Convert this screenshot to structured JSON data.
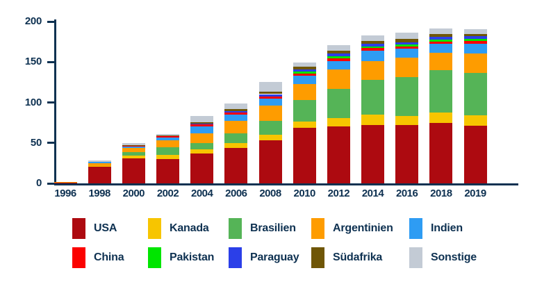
{
  "chart_data": {
    "type": "bar",
    "stacked": true,
    "title": "",
    "xlabel": "",
    "ylabel": "",
    "ylim": [
      0,
      200
    ],
    "yticks": [
      0,
      50,
      100,
      150,
      200
    ],
    "grid": false,
    "legend_position": "bottom",
    "axis_color": "#0e3151",
    "background_color": "#ffffff",
    "categories": [
      "1996",
      "1998",
      "2000",
      "2002",
      "2004",
      "2006",
      "2008",
      "2010",
      "2012",
      "2014",
      "2016",
      "2018",
      "2019"
    ],
    "series": [
      {
        "name": "USA",
        "color": "#ad0a10",
        "values": [
          0.9,
          20.5,
          30.5,
          30.0,
          37.0,
          44.0,
          53.5,
          69.0,
          70.5,
          72.5,
          72.0,
          75.0,
          71.5
        ]
      },
      {
        "name": "Kanada",
        "color": "#f7c500",
        "values": [
          0.5,
          1.0,
          3.5,
          5.0,
          5.0,
          5.5,
          6.5,
          7.0,
          10.5,
          12.5,
          11.0,
          12.5,
          12.5
        ]
      },
      {
        "name": "Brasilien",
        "color": "#55b457",
        "values": [
          0,
          0,
          4.5,
          9.5,
          8.0,
          12.5,
          17.5,
          27.0,
          35.5,
          43.0,
          48.5,
          52.0,
          52.8
        ]
      },
      {
        "name": "Argentinien",
        "color": "#fe9c00",
        "values": [
          0.3,
          3.0,
          5.0,
          9.0,
          12.0,
          15.5,
          18.5,
          20.0,
          24.0,
          23.5,
          24.0,
          22.0,
          24.0
        ]
      },
      {
        "name": "Indien",
        "color": "#2e9cf3",
        "values": [
          0,
          2.3,
          2.2,
          3.4,
          8.5,
          7.7,
          8.3,
          9.7,
          10.6,
          12.3,
          10.9,
          11.0,
          11.9
        ]
      },
      {
        "name": "China",
        "color": "#fb0200",
        "values": [
          0,
          0,
          1.5,
          2.2,
          2.6,
          2.3,
          3.4,
          3.0,
          3.7,
          3.4,
          3.0,
          2.7,
          3.2
        ]
      },
      {
        "name": "Pakistan",
        "color": "#00e500",
        "values": [
          0,
          0,
          0,
          0,
          0,
          0,
          0,
          2.3,
          2.6,
          2.3,
          2.4,
          2.5,
          2.5
        ]
      },
      {
        "name": "Paraguay",
        "color": "#2b3fe8",
        "values": [
          0,
          0,
          0,
          0,
          1.0,
          2.0,
          2.6,
          2.6,
          3.1,
          3.1,
          2.8,
          3.6,
          3.6
        ]
      },
      {
        "name": "Südafrika",
        "color": "#6f5606",
        "values": [
          0,
          0,
          0.4,
          0.4,
          1.4,
          2.6,
          2.6,
          3.4,
          3.4,
          3.1,
          3.6,
          3.3,
          2.8
        ]
      },
      {
        "name": "Sonstige",
        "color": "#c3cbd5",
        "values": [
          0,
          1.5,
          1.9,
          1.2,
          7.5,
          7.0,
          12.0,
          5.0,
          7.0,
          7.0,
          7.9,
          6.6,
          5.6
        ]
      }
    ]
  }
}
